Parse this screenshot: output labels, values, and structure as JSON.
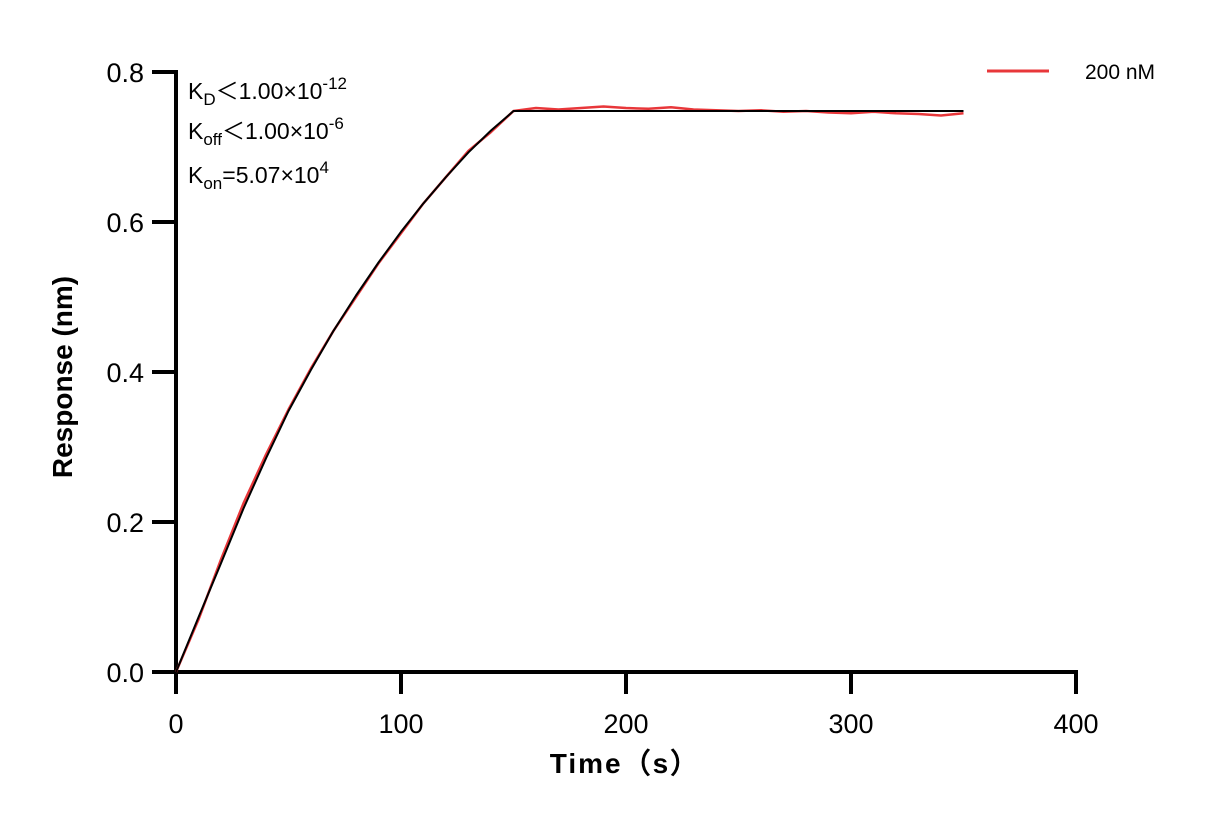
{
  "chart_data": {
    "type": "line",
    "xlabel": "Time（s）",
    "ylabel": "Response (nm)",
    "xlim": [
      0,
      400
    ],
    "ylim": [
      0,
      0.8
    ],
    "xticks": [
      "0",
      "100",
      "200",
      "300",
      "400"
    ],
    "yticks": [
      "0.0",
      "0.2",
      "0.4",
      "0.6",
      "0.8"
    ],
    "grid": false,
    "legend_position": "top-right",
    "colors": {
      "measured": "#e8373a",
      "fit": "#000000",
      "axis": "#000000"
    },
    "series": [
      {
        "name": "200 nM",
        "role": "measured",
        "x": [
          0,
          10,
          20,
          30,
          40,
          50,
          60,
          70,
          80,
          90,
          100,
          110,
          120,
          130,
          140,
          150,
          160,
          170,
          180,
          190,
          200,
          210,
          220,
          230,
          240,
          250,
          260,
          270,
          280,
          290,
          300,
          310,
          320,
          330,
          340,
          350
        ],
        "y": [
          0.0,
          0.07,
          0.15,
          0.225,
          0.29,
          0.35,
          0.405,
          0.455,
          0.5,
          0.545,
          0.585,
          0.625,
          0.66,
          0.695,
          0.72,
          0.748,
          0.752,
          0.75,
          0.752,
          0.754,
          0.752,
          0.751,
          0.753,
          0.75,
          0.749,
          0.748,
          0.749,
          0.747,
          0.748,
          0.746,
          0.745,
          0.747,
          0.745,
          0.744,
          0.742,
          0.745
        ]
      },
      {
        "role": "fit",
        "x": [
          0,
          10,
          20,
          30,
          40,
          50,
          60,
          70,
          80,
          90,
          100,
          110,
          120,
          130,
          140,
          150,
          350
        ],
        "y": [
          0.0,
          0.073,
          0.145,
          0.218,
          0.285,
          0.348,
          0.403,
          0.455,
          0.502,
          0.546,
          0.587,
          0.625,
          0.66,
          0.693,
          0.722,
          0.748,
          0.748
        ]
      }
    ],
    "annotations": [
      {
        "main": "K",
        "sub": "D",
        "rest": "＜1.00×10",
        "sup": "-12"
      },
      {
        "main": "K",
        "sub": "off",
        "rest": "＜1.00×10",
        "sup": "-6"
      },
      {
        "main": "K",
        "sub": "on",
        "rest": "=5.07×10",
        "sup": "4"
      }
    ]
  }
}
